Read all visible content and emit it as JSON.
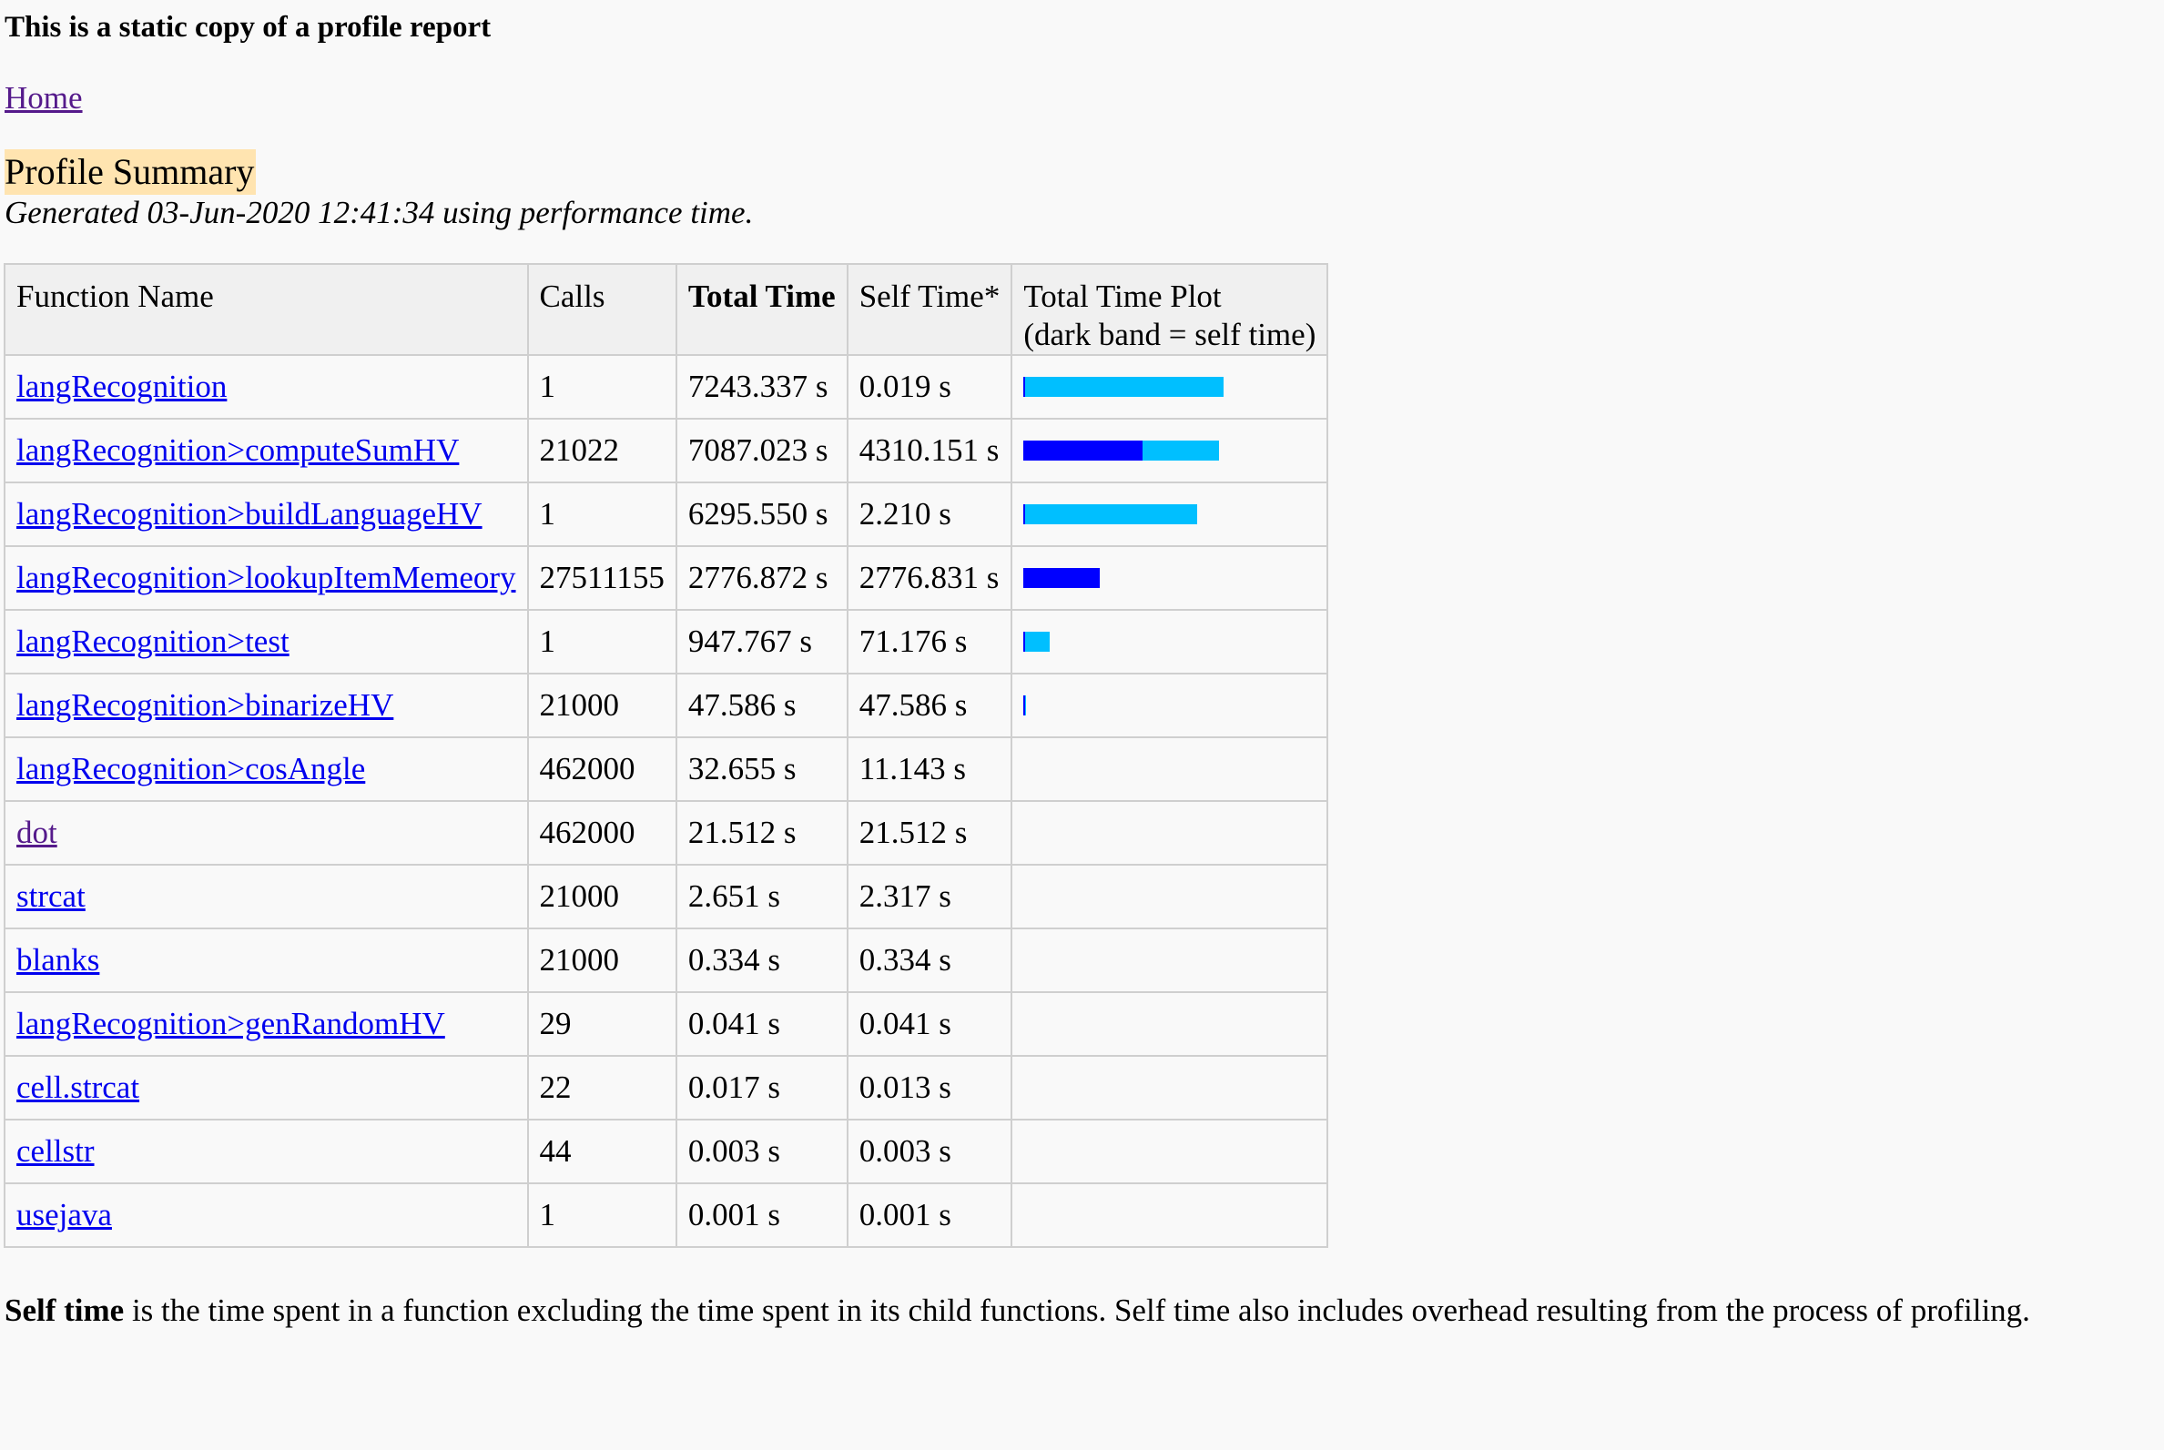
{
  "notice": "This is a static copy of a profile report",
  "home_link": "Home",
  "summary": {
    "title": "Profile Summary",
    "generated": "Generated 03-Jun-2020 12:41:34 using performance time."
  },
  "table": {
    "headers": {
      "function_name": "Function Name",
      "calls": "Calls",
      "total_time": "Total Time",
      "self_time": "Self Time*",
      "plot_line1": "Total Time Plot",
      "plot_line2": "(dark band = self time)"
    },
    "max_total_time": 7243.337,
    "colors": {
      "total_band": "#00bfff",
      "self_band": "#0000ff"
    },
    "rows": [
      {
        "name": "langRecognition",
        "calls": "1",
        "total": "7243.337 s",
        "self": "0.019 s",
        "total_value": 7243.337,
        "self_value": 0.019,
        "plot": true
      },
      {
        "name": "langRecognition>computeSumHV",
        "calls": "21022",
        "total": "7087.023 s",
        "self": "4310.151 s",
        "total_value": 7087.023,
        "self_value": 4310.151,
        "plot": true
      },
      {
        "name": "langRecognition>buildLanguageHV",
        "calls": "1",
        "total": "6295.550 s",
        "self": "2.210 s",
        "total_value": 6295.55,
        "self_value": 2.21,
        "plot": true
      },
      {
        "name": "langRecognition>lookupItemMemeory",
        "calls": "27511155",
        "total": "2776.872 s",
        "self": "2776.831 s",
        "total_value": 2776.872,
        "self_value": 2776.831,
        "plot": true
      },
      {
        "name": "langRecognition>test",
        "calls": "1",
        "total": "947.767 s",
        "self": "71.176 s",
        "total_value": 947.767,
        "self_value": 71.176,
        "plot": true
      },
      {
        "name": "langRecognition>binarizeHV",
        "calls": "21000",
        "total": "47.586 s",
        "self": "47.586 s",
        "total_value": 47.586,
        "self_value": 47.586,
        "plot": true
      },
      {
        "name": "langRecognition>cosAngle",
        "calls": "462000",
        "total": "32.655 s",
        "self": "11.143 s",
        "total_value": 32.655,
        "self_value": 11.143,
        "plot": false
      },
      {
        "name": "dot",
        "calls": "462000",
        "total": "21.512 s",
        "self": "21.512 s",
        "total_value": 21.512,
        "self_value": 21.512,
        "plot": false,
        "visited": true
      },
      {
        "name": "strcat",
        "calls": "21000",
        "total": "2.651 s",
        "self": "2.317 s",
        "total_value": 2.651,
        "self_value": 2.317,
        "plot": false
      },
      {
        "name": "blanks",
        "calls": "21000",
        "total": "0.334 s",
        "self": "0.334 s",
        "total_value": 0.334,
        "self_value": 0.334,
        "plot": false
      },
      {
        "name": "langRecognition>genRandomHV",
        "calls": "29",
        "total": "0.041 s",
        "self": "0.041 s",
        "total_value": 0.041,
        "self_value": 0.041,
        "plot": false
      },
      {
        "name": "cell.strcat",
        "calls": "22",
        "total": "0.017 s",
        "self": "0.013 s",
        "total_value": 0.017,
        "self_value": 0.013,
        "plot": false
      },
      {
        "name": "cellstr",
        "calls": "44",
        "total": "0.003 s",
        "self": "0.003 s",
        "total_value": 0.003,
        "self_value": 0.003,
        "plot": false
      },
      {
        "name": "usejava",
        "calls": "1",
        "total": "0.001 s",
        "self": "0.001 s",
        "total_value": 0.001,
        "self_value": 0.001,
        "plot": false
      }
    ]
  },
  "footnote": {
    "term": "Self time",
    "text": " is the time spent in a function excluding the time spent in its child functions. Self time also includes overhead resulting from the process of profiling."
  }
}
